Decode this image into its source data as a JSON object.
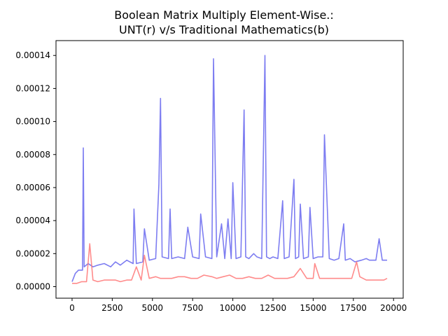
{
  "chart_data": {
    "type": "line",
    "title_lines": [
      "Boolean Matrix Multiply Element-Wise.:",
      "UNT(r) v/s Traditional Mathematics(b)"
    ],
    "xlabel": "",
    "ylabel": "",
    "xlim": [
      -1000,
      20600
    ],
    "ylim": [
      -7e-06,
      0.000149
    ],
    "xticks": [
      0,
      2500,
      5000,
      7500,
      10000,
      12500,
      15000,
      17500,
      20000
    ],
    "xtick_labels": [
      "0",
      "2500",
      "5000",
      "7500",
      "10000",
      "12500",
      "15000",
      "17500",
      "20000"
    ],
    "yticks": [
      0,
      2e-05,
      4e-05,
      6e-05,
      8e-05,
      0.0001,
      0.00012,
      0.00014
    ],
    "ytick_labels": [
      "0.00000",
      "0.00002",
      "0.00004",
      "0.00006",
      "0.00008",
      "0.00010",
      "0.00012",
      "0.00014"
    ],
    "grid": false,
    "series": [
      {
        "color": "#6666ee",
        "x": [
          0,
          200,
          400,
          650,
          700,
          750,
          1000,
          1300,
          1600,
          2000,
          2400,
          2700,
          3000,
          3400,
          3800,
          3850,
          4000,
          4400,
          4500,
          4800,
          5200,
          5400,
          5500,
          5600,
          6000,
          6100,
          6200,
          6600,
          7000,
          7200,
          7500,
          7900,
          8000,
          8300,
          8700,
          8800,
          9000,
          9300,
          9500,
          9700,
          9900,
          10000,
          10200,
          10500,
          10700,
          10800,
          11000,
          11300,
          11500,
          11800,
          12000,
          12100,
          12300,
          12500,
          12800,
          13100,
          13200,
          13500,
          13800,
          13900,
          14100,
          14200,
          14400,
          14700,
          14800,
          15000,
          15300,
          15600,
          15700,
          16000,
          16300,
          16600,
          16900,
          17000,
          17300,
          17600,
          18000,
          18300,
          18500,
          18900,
          19100,
          19300,
          19600
        ],
        "values": [
          3e-06,
          8e-06,
          1e-05,
          1e-05,
          8.4e-05,
          1.2e-05,
          1.4e-05,
          1.2e-05,
          1.3e-05,
          1.4e-05,
          1.2e-05,
          1.5e-05,
          1.3e-05,
          1.6e-05,
          1.4e-05,
          4.7e-05,
          1.4e-05,
          1.5e-05,
          3.5e-05,
          1.6e-05,
          1.7e-05,
          6.2e-05,
          0.000114,
          1.8e-05,
          1.7e-05,
          4.7e-05,
          1.7e-05,
          1.8e-05,
          1.7e-05,
          3.6e-05,
          1.8e-05,
          1.7e-05,
          4.4e-05,
          1.8e-05,
          1.7e-05,
          0.000138,
          1.8e-05,
          3.8e-05,
          1.7e-05,
          4.1e-05,
          1.7e-05,
          6.3e-05,
          1.7e-05,
          1.8e-05,
          0.000107,
          1.8e-05,
          1.7e-05,
          2e-05,
          1.8e-05,
          1.7e-05,
          0.00014,
          1.8e-05,
          1.7e-05,
          1.8e-05,
          1.7e-05,
          5.2e-05,
          1.7e-05,
          1.8e-05,
          6.5e-05,
          1.7e-05,
          1.8e-05,
          5e-05,
          1.7e-05,
          1.8e-05,
          4.8e-05,
          1.7e-05,
          1.8e-05,
          1.8e-05,
          9.2e-05,
          1.7e-05,
          1.6e-05,
          1.7e-05,
          3.8e-05,
          1.6e-05,
          1.7e-05,
          1.5e-05,
          1.6e-05,
          1.7e-05,
          1.6e-05,
          1.6e-05,
          2.9e-05,
          1.6e-05,
          1.6e-05
        ]
      },
      {
        "color": "#ff7777",
        "x": [
          0,
          300,
          600,
          900,
          1100,
          1300,
          1600,
          2000,
          2400,
          2700,
          3000,
          3400,
          3700,
          4000,
          4300,
          4500,
          4800,
          5200,
          5500,
          5800,
          6200,
          6600,
          7000,
          7400,
          7800,
          8200,
          8700,
          9000,
          9400,
          9800,
          10200,
          10600,
          11000,
          11400,
          11800,
          12200,
          12600,
          13000,
          13400,
          13800,
          14200,
          14600,
          15000,
          15100,
          15400,
          15800,
          16200,
          16600,
          17000,
          17400,
          17700,
          17900,
          18300,
          18700,
          19100,
          19400,
          19600
        ],
        "values": [
          2e-06,
          2e-06,
          3e-06,
          3e-06,
          2.6e-05,
          4e-06,
          3e-06,
          4e-06,
          4e-06,
          4e-06,
          3e-06,
          4e-06,
          4e-06,
          1.2e-05,
          4e-06,
          1.9e-05,
          5e-06,
          6e-06,
          5e-06,
          5e-06,
          5e-06,
          6e-06,
          6e-06,
          5e-06,
          5e-06,
          7e-06,
          6e-06,
          5e-06,
          6e-06,
          7e-06,
          5e-06,
          5e-06,
          6e-06,
          5e-06,
          5e-06,
          7e-06,
          5e-06,
          5e-06,
          5e-06,
          6e-06,
          1.1e-05,
          5e-06,
          5e-06,
          1.4e-05,
          5e-06,
          5e-06,
          5e-06,
          5e-06,
          5e-06,
          5e-06,
          1.5e-05,
          6e-06,
          4e-06,
          4e-06,
          4e-06,
          4e-06,
          5e-06
        ]
      }
    ]
  }
}
